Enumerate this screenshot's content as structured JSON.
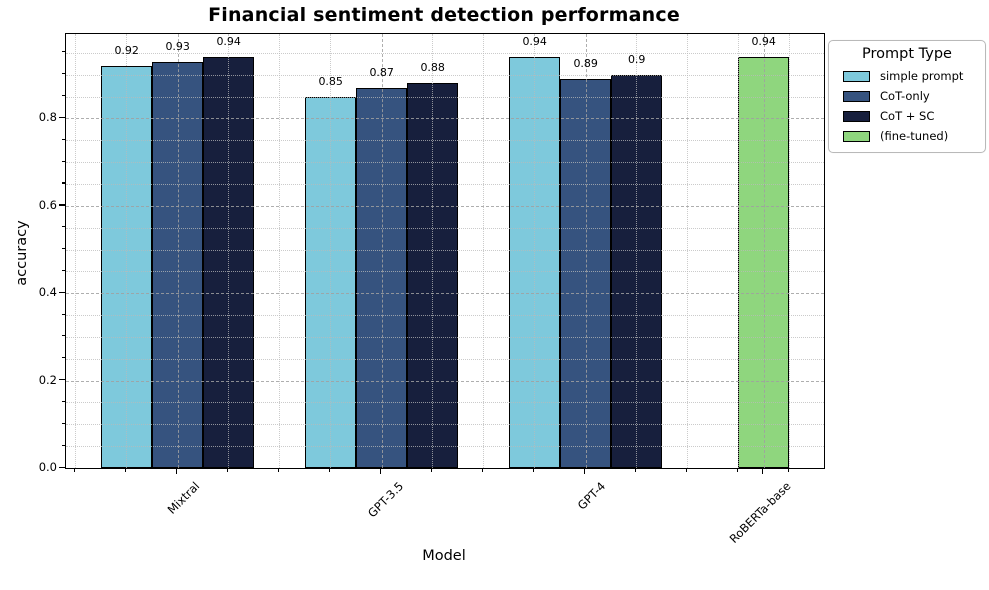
{
  "chart_data": {
    "type": "bar",
    "title": "Financial sentiment detection performance",
    "xlabel": "Model",
    "ylabel": "accuracy",
    "categories": [
      "Mixtral",
      "GPT-3.5",
      "GPT-4",
      "RoBERTa-base"
    ],
    "series": [
      {
        "name": "simple prompt",
        "color": "#7EC9DC",
        "values": [
          0.92,
          0.85,
          0.94,
          null
        ],
        "labels": [
          "0.92",
          "0.85",
          "0.94",
          null
        ]
      },
      {
        "name": "CoT-only",
        "color": "#36537F",
        "values": [
          0.93,
          0.87,
          0.89,
          null
        ],
        "labels": [
          "0.93",
          "0.87",
          "0.89",
          null
        ]
      },
      {
        "name": "CoT + SC",
        "color": "#171F3D",
        "values": [
          0.94,
          0.88,
          0.9,
          null
        ],
        "labels": [
          "0.94",
          "0.88",
          "0.9",
          null
        ]
      },
      {
        "name": "(fine-tuned)",
        "color": "#8FD67E",
        "values": [
          null,
          null,
          null,
          0.94
        ],
        "labels": [
          null,
          null,
          null,
          "0.94"
        ]
      }
    ],
    "ylim": [
      0,
      0.993
    ],
    "yticks": [
      "0.0",
      "0.2",
      "0.4",
      "0.6",
      "0.8"
    ],
    "grid": true,
    "legend": {
      "title": "Prompt Type",
      "position": "upper-right-outside"
    }
  }
}
